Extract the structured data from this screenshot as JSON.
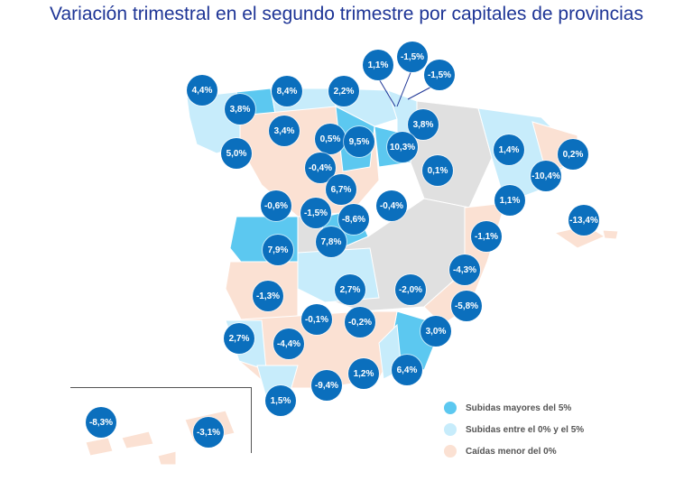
{
  "title": "Variación trimestral en el segundo trimestre por capitales de provincias",
  "colors": {
    "strong_rise": "#5cc8f0",
    "rise": "#c7ecfb",
    "fall": "#fbe1d3",
    "no_data": "#e0e0e0",
    "bubble": "#0b6fbd"
  },
  "legend": {
    "strong_rise": "Subidas mayores del 5%",
    "rise": "Subidas entre el 0% y el 5%",
    "fall": "Caídas menor del 0%"
  },
  "labels": [
    "4,4%",
    "8,4%",
    "2,2%",
    "1,1%",
    "-1,5%",
    "-1,5%",
    "3,8%",
    "3,4%",
    "3,8%",
    "0,5%",
    "9,5%",
    "10,3%",
    "5,0%",
    "-0,4%",
    "1,4%",
    "0,2%",
    "0,1%",
    "-10,4%",
    "6,7%",
    "-0,6%",
    "-1,5%",
    "-8,6%",
    "-0,4%",
    "1,1%",
    "-13,4%",
    "7,9%",
    "7,8%",
    "-1,1%",
    "-4,3%",
    "-1,3%",
    "2,7%",
    "-2,0%",
    "-5,8%",
    "-0,1%",
    "-0,2%",
    "3,0%",
    "2,7%",
    "-4,4%",
    "6,4%",
    "1,2%",
    "-9,4%",
    "1,5%",
    "-8,3%",
    "-3,1%"
  ]
}
